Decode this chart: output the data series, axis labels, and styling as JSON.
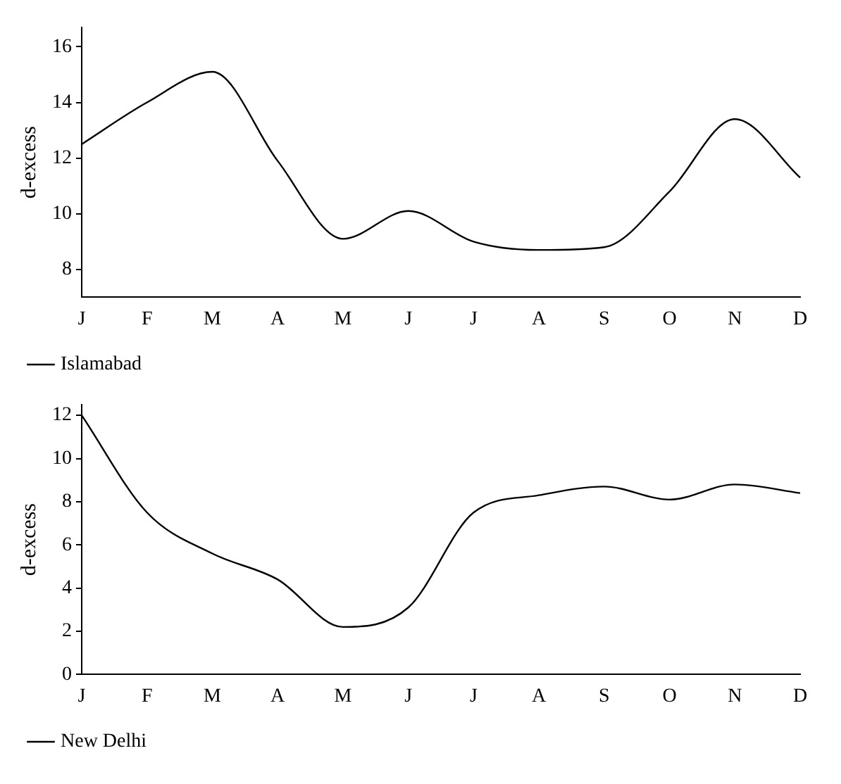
{
  "chart_data": [
    {
      "type": "line",
      "ylabel": "d-excess",
      "categories": [
        "J",
        "F",
        "M",
        "A",
        "M",
        "J",
        "J",
        "A",
        "S",
        "O",
        "N",
        "D"
      ],
      "ylim": [
        7,
        16.7
      ],
      "yticks": [
        8,
        10,
        12,
        14,
        16
      ],
      "grid": false,
      "legend": "bottom left",
      "marker": "none",
      "line_style": "solid",
      "series": [
        {
          "name": "Islamabad",
          "color": "#000000",
          "values": [
            12.5,
            14.0,
            15.1,
            11.9,
            9.1,
            10.1,
            9.0,
            8.7,
            8.8,
            10.8,
            13.4,
            11.3
          ]
        }
      ]
    },
    {
      "type": "line",
      "ylabel": "d-excess",
      "categories": [
        "J",
        "F",
        "M",
        "A",
        "M",
        "J",
        "J",
        "A",
        "S",
        "O",
        "N",
        "D"
      ],
      "ylim": [
        0,
        12.5
      ],
      "yticks": [
        0,
        2,
        4,
        6,
        8,
        10,
        12
      ],
      "grid": false,
      "legend": "bottom left",
      "marker": "none",
      "line_style": "solid",
      "series": [
        {
          "name": "New Delhi",
          "color": "#000000",
          "values": [
            12.0,
            7.5,
            5.6,
            4.4,
            2.2,
            3.1,
            7.5,
            8.3,
            8.7,
            8.1,
            8.8,
            8.4
          ]
        }
      ]
    }
  ]
}
